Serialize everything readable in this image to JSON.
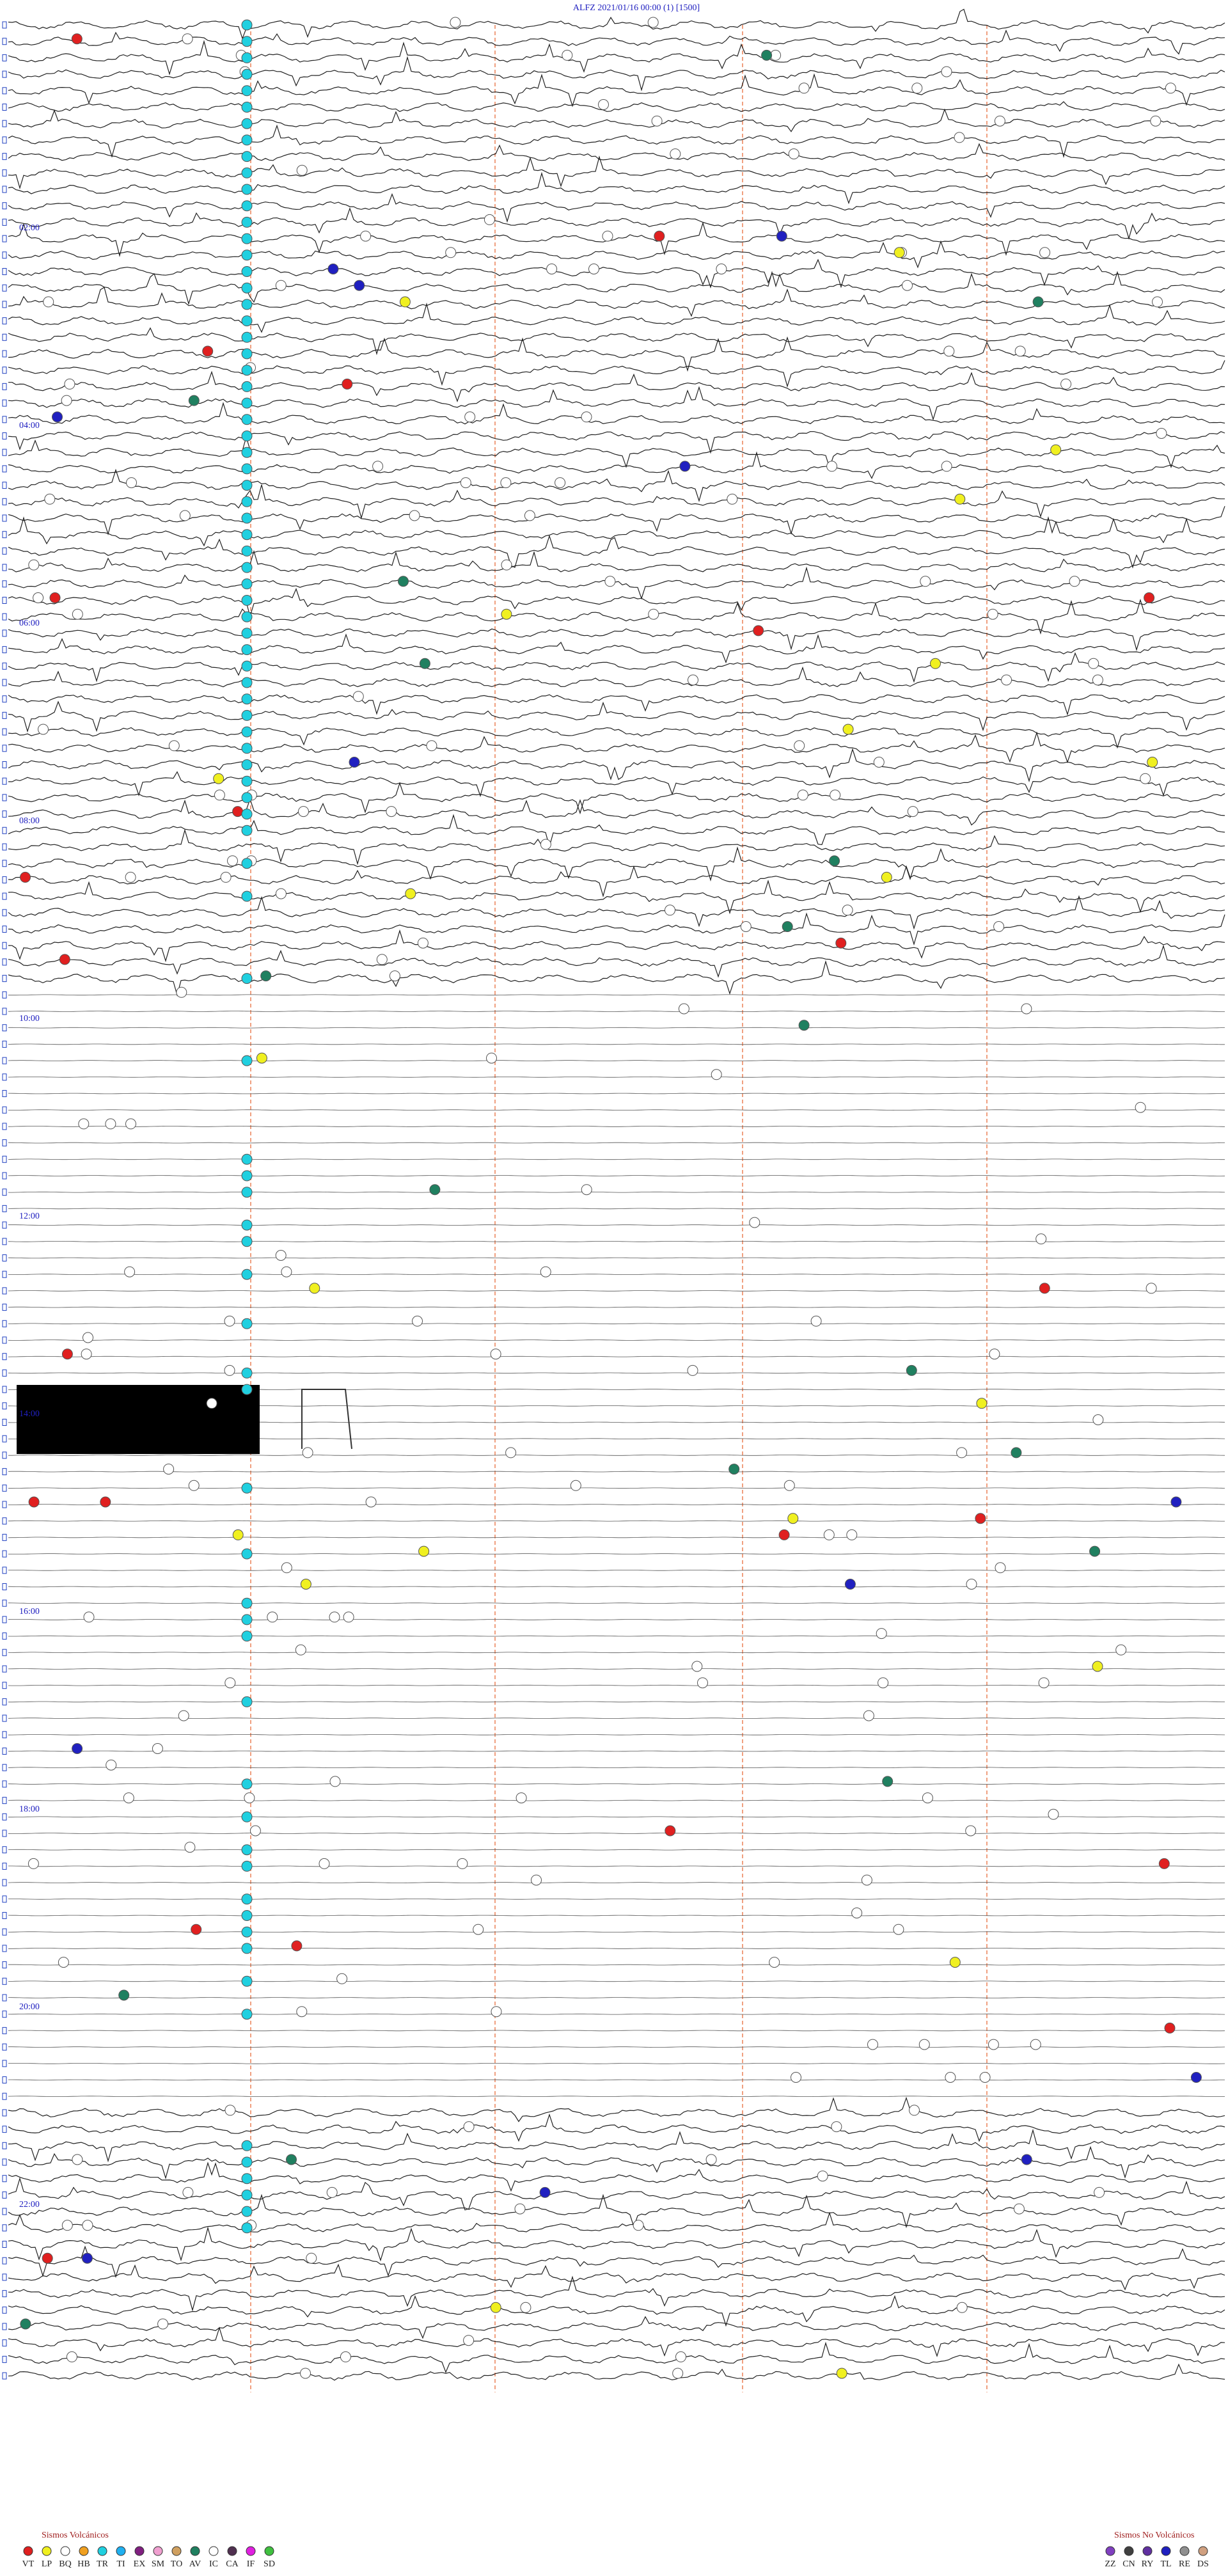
{
  "header": {
    "title": "ALFZ     2021/01/16 00:00     (1)     [1500]"
  },
  "time_labels": [
    "02:00",
    "04:00",
    "06:00",
    "08:00",
    "10:00",
    "12:00",
    "14:00",
    "16:00",
    "18:00",
    "20:00",
    "22:00"
  ],
  "legend_volcanic": {
    "title": "Sismos Volcánicos",
    "items": [
      {
        "code": "VT",
        "color": "#e02020"
      },
      {
        "code": "LP",
        "color": "#f0f020"
      },
      {
        "code": "BQ",
        "color": "#ffffff"
      },
      {
        "code": "HB",
        "color": "#f0a020"
      },
      {
        "code": "TR",
        "color": "#20d0e0"
      },
      {
        "code": "TI",
        "color": "#20b0f0"
      },
      {
        "code": "EX",
        "color": "#802080"
      },
      {
        "code": "SM",
        "color": "#f0a0d0"
      },
      {
        "code": "TO",
        "color": "#d0a060"
      },
      {
        "code": "AV",
        "color": "#208060"
      },
      {
        "code": "IC",
        "color": "#ffffff"
      },
      {
        "code": "CA",
        "color": "#503050"
      },
      {
        "code": "IF",
        "color": "#e020e0"
      },
      {
        "code": "SD",
        "color": "#40c040"
      }
    ]
  },
  "legend_non_volcanic": {
    "title": "Sismos No Volcánicos",
    "items": [
      {
        "code": "ZZ",
        "color": "#8040c0"
      },
      {
        "code": "CN",
        "color": "#404040"
      },
      {
        "code": "RY",
        "color": "#6030a0"
      },
      {
        "code": "TL",
        "color": "#2020c0"
      },
      {
        "code": "RE",
        "color": "#909090"
      },
      {
        "code": "DS",
        "color": "#d0a080"
      }
    ]
  }
}
